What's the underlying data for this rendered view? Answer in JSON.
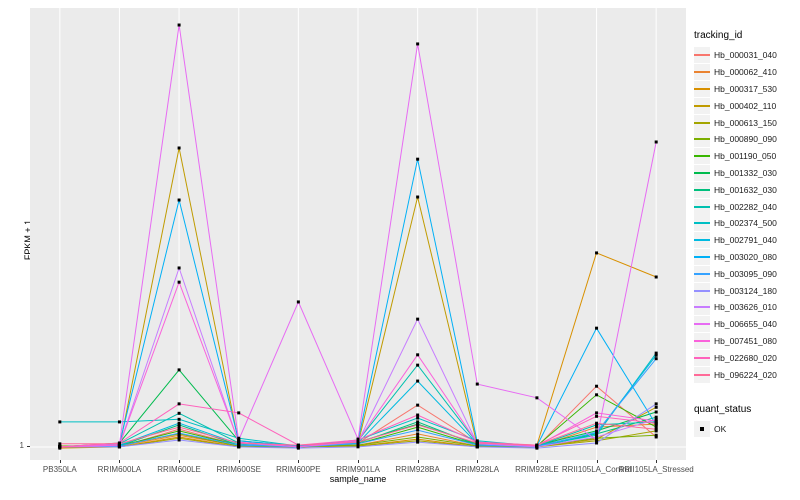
{
  "chart_data": {
    "type": "line",
    "title": "",
    "xlabel": "sample_name",
    "ylabel": "FPKM + 1",
    "y_axis": {
      "ticks": [
        "1"
      ],
      "note": "Only the value 1 is labeled on the y axis (FPKM + 1 baseline). Series values below are normalized fractions of panel height above that baseline."
    },
    "categories": [
      "PB350LA",
      "RRIM600LA",
      "RRIM600LE",
      "RRIM600SE",
      "RRIM600PE",
      "RRIM901LA",
      "RRIM928BA",
      "RRIM928LA",
      "RRIM928LE",
      "RRII105LA_Control",
      "RRII105LA_Stressed"
    ],
    "legend": {
      "title": "tracking_id",
      "position": "right"
    },
    "quant_status": {
      "title": "quant_status",
      "items": [
        {
          "label": "OK",
          "marker": "black-square"
        }
      ]
    },
    "series": [
      {
        "name": "Hb_000031_040",
        "color": "#F8766D",
        "values": [
          0.005,
          0.005,
          0.046,
          0.009,
          0.005,
          0.014,
          0.102,
          0.014,
          0.005,
          0.146,
          0.028
        ]
      },
      {
        "name": "Hb_000062_410",
        "color": "#EA8331",
        "values": [
          0.005,
          0.007,
          0.032,
          0.007,
          0.005,
          0.009,
          0.035,
          0.007,
          0.005,
          0.051,
          0.058
        ]
      },
      {
        "name": "Hb_000317_530",
        "color": "#D89000",
        "values": [
          0.002,
          0.005,
          0.028,
          0.005,
          0.005,
          0.007,
          0.023,
          0.005,
          0.009,
          0.456,
          0.4
        ]
      },
      {
        "name": "Hb_000402_110",
        "color": "#C09B00",
        "values": [
          0.005,
          0.005,
          0.7,
          0.014,
          0.005,
          0.012,
          0.586,
          0.009,
          0.005,
          0.023,
          0.097
        ]
      },
      {
        "name": "Hb_000613_150",
        "color": "#A3A500",
        "values": [
          0.005,
          0.005,
          0.025,
          0.005,
          0.005,
          0.007,
          0.019,
          0.005,
          0.005,
          0.019,
          0.042
        ]
      },
      {
        "name": "Hb_000890_090",
        "color": "#7CAE00",
        "values": [
          0.007,
          0.009,
          0.035,
          0.007,
          0.007,
          0.009,
          0.028,
          0.007,
          0.007,
          0.025,
          0.032
        ]
      },
      {
        "name": "Hb_001190_050",
        "color": "#39B600",
        "values": [
          0.005,
          0.007,
          0.042,
          0.009,
          0.005,
          0.012,
          0.051,
          0.009,
          0.007,
          0.126,
          0.051
        ]
      },
      {
        "name": "Hb_001332_030",
        "color": "#00BB4E",
        "values": [
          0.005,
          0.014,
          0.184,
          0.019,
          0.007,
          0.016,
          0.058,
          0.012,
          0.009,
          0.042,
          0.086
        ]
      },
      {
        "name": "Hb_001632_030",
        "color": "#00BF7D",
        "values": [
          0.005,
          0.007,
          0.056,
          0.009,
          0.005,
          0.014,
          0.063,
          0.009,
          0.005,
          0.035,
          0.074
        ]
      },
      {
        "name": "Hb_002282_040",
        "color": "#00C0AF",
        "values": [
          0.005,
          0.012,
          0.083,
          0.014,
          0.005,
          0.019,
          0.195,
          0.014,
          0.007,
          0.056,
          0.063
        ]
      },
      {
        "name": "Hb_002374_500",
        "color": "#00BFC4",
        "values": [
          0.063,
          0.063,
          0.069,
          0.025,
          0.007,
          0.021,
          0.072,
          0.019,
          0.007,
          0.032,
          0.223
        ]
      },
      {
        "name": "Hb_002791_040",
        "color": "#00BAE0",
        "values": [
          0.005,
          0.009,
          0.06,
          0.012,
          0.005,
          0.014,
          0.158,
          0.012,
          0.007,
          0.037,
          0.218
        ]
      },
      {
        "name": "Hb_003020_080",
        "color": "#00B0F6",
        "values": [
          0.005,
          0.012,
          0.579,
          0.019,
          0.007,
          0.019,
          0.674,
          0.016,
          0.007,
          0.281,
          0.056
        ]
      },
      {
        "name": "Hb_003095_090",
        "color": "#35A2FF",
        "values": [
          0.005,
          0.007,
          0.037,
          0.009,
          0.005,
          0.012,
          0.044,
          0.009,
          0.005,
          0.039,
          0.21
        ]
      },
      {
        "name": "Hb_003124_180",
        "color": "#9590FF",
        "values": [
          0.005,
          0.005,
          0.021,
          0.005,
          0.002,
          0.005,
          0.016,
          0.005,
          0.002,
          0.014,
          0.105
        ]
      },
      {
        "name": "Hb_003626_010",
        "color": "#C77CFF",
        "values": [
          0.005,
          0.009,
          0.421,
          0.014,
          0.005,
          0.016,
          0.302,
          0.012,
          0.005,
          0.028,
          0.069
        ]
      },
      {
        "name": "Hb_006655_040",
        "color": "#E76BF3",
        "values": [
          0.005,
          0.012,
          0.986,
          0.021,
          0.342,
          0.023,
          0.942,
          0.151,
          0.119,
          0.021,
          0.714
        ]
      },
      {
        "name": "Hb_007451_080",
        "color": "#FA62DB",
        "values": [
          0.005,
          0.009,
          0.388,
          0.016,
          0.005,
          0.019,
          0.219,
          0.014,
          0.007,
          0.084,
          0.065
        ]
      },
      {
        "name": "Hb_022680_020",
        "color": "#FF62BC",
        "values": [
          0.005,
          0.014,
          0.105,
          0.084,
          0.009,
          0.021,
          0.079,
          0.016,
          0.009,
          0.076,
          0.06
        ]
      },
      {
        "name": "Hb_096224_020",
        "color": "#FF6A98",
        "values": [
          0.012,
          0.012,
          0.051,
          0.014,
          0.009,
          0.016,
          0.056,
          0.014,
          0.009,
          0.06,
          0.046
        ]
      }
    ],
    "layout": {
      "grid": "major-only",
      "panel_lines": "white vertical at each category, horizontal at y=1"
    }
  },
  "colors": {
    "panel_bg": "#EBEBEB",
    "gridline": "#FFFFFF",
    "axis_text": "#4D4D4D",
    "marker": "#000000",
    "legend_key_bg": "#F2F2F2"
  }
}
